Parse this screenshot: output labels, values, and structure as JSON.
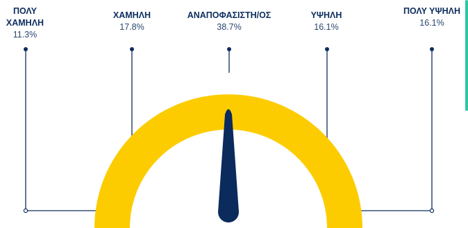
{
  "chart_data": {
    "type": "gauge",
    "categories": [
      {
        "name_lines": [
          "ΠΟΛΥ",
          "ΧΑΜΗΛΗ"
        ],
        "percent_label": "11.3%",
        "value": 11.3
      },
      {
        "name_lines": [
          "ΧΑΜΗΛΗ"
        ],
        "percent_label": "17.8%",
        "value": 17.8
      },
      {
        "name_lines": [
          "ΑΝΑΠΟΦΑΣΙΣΤΗ/ΟΣ"
        ],
        "percent_label": "38.7%",
        "value": 38.7
      },
      {
        "name_lines": [
          "ΥΨΗΛΗ"
        ],
        "percent_label": "16.1%",
        "value": 16.1
      },
      {
        "name_lines": [
          "ΠΟΛΥ ΥΨΗΛΗ"
        ],
        "percent_label": "16.1%",
        "value": 16.1
      }
    ],
    "needle_category": "ΑΝΑΠΟΦΑΣΙΣΤΗ/ΟΣ",
    "colors": {
      "arc": "#fccc00",
      "needle": "#0b2b5c",
      "lines": "#0d2d5e",
      "text": "#0d2d5e",
      "accent": "#2fc7a2"
    }
  }
}
